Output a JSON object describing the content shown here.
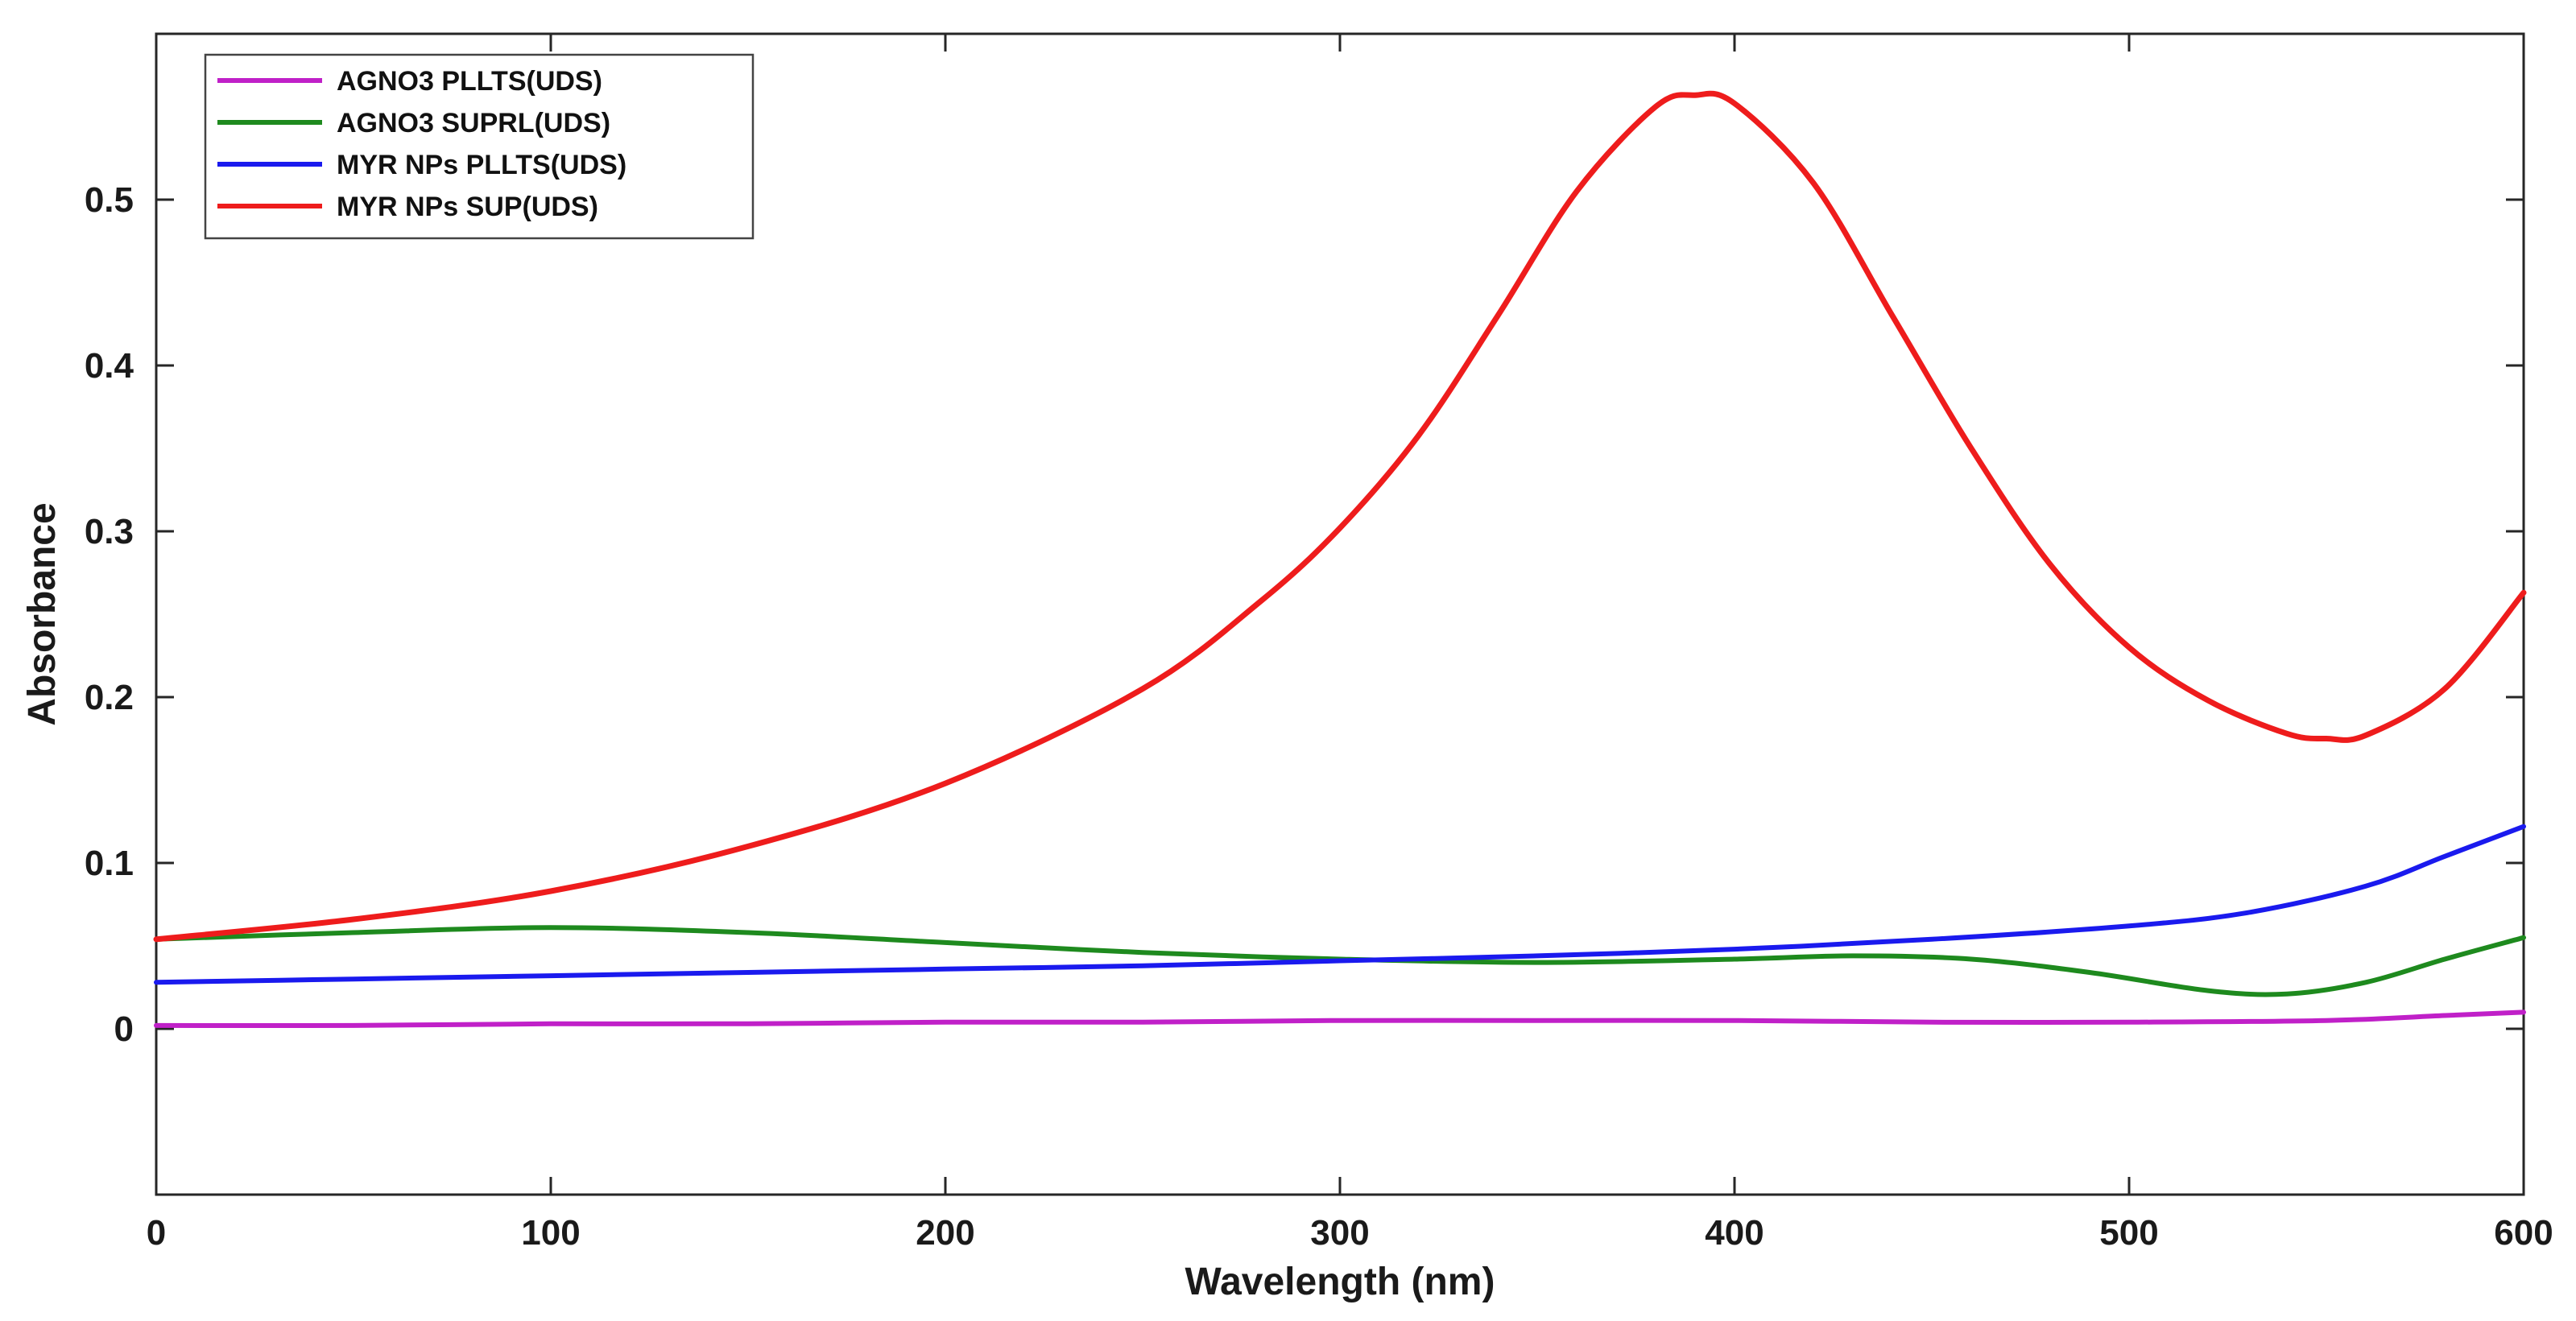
{
  "chart_data": {
    "type": "line",
    "title": "",
    "xlabel": "Wavelength (nm)",
    "ylabel": "Absorbance",
    "xlim": [
      0,
      600
    ],
    "ylim": [
      -0.1,
      0.6
    ],
    "xticks": [
      0,
      100,
      200,
      300,
      400,
      500,
      600
    ],
    "yticks": [
      0,
      0.1,
      0.2,
      0.3,
      0.4,
      0.5
    ],
    "grid": false,
    "legend_position": "top-left",
    "series": [
      {
        "name": "AGNO3 PLLTS(UDS)",
        "color": "#c020c8",
        "x": [
          0,
          50,
          100,
          150,
          200,
          250,
          300,
          350,
          400,
          450,
          500,
          550,
          580,
          600
        ],
        "y": [
          0.002,
          0.002,
          0.003,
          0.003,
          0.004,
          0.004,
          0.005,
          0.005,
          0.005,
          0.004,
          0.004,
          0.005,
          0.008,
          0.01
        ]
      },
      {
        "name": "AGNO3 SUPRL(UDS)",
        "color": "#1e8a1e",
        "x": [
          0,
          50,
          100,
          150,
          200,
          250,
          300,
          350,
          400,
          430,
          460,
          490,
          520,
          540,
          560,
          580,
          600
        ],
        "y": [
          0.054,
          0.058,
          0.061,
          0.058,
          0.052,
          0.046,
          0.042,
          0.04,
          0.042,
          0.044,
          0.042,
          0.034,
          0.023,
          0.021,
          0.028,
          0.042,
          0.055
        ]
      },
      {
        "name": "MYR NPs PLLTS(UDS)",
        "color": "#1a1aee",
        "x": [
          0,
          50,
          100,
          150,
          200,
          250,
          300,
          350,
          400,
          450,
          500,
          530,
          560,
          580,
          600
        ],
        "y": [
          0.028,
          0.03,
          0.032,
          0.034,
          0.036,
          0.038,
          0.041,
          0.044,
          0.048,
          0.054,
          0.062,
          0.07,
          0.086,
          0.104,
          0.122
        ]
      },
      {
        "name": "MYR NPs SUP(UDS)",
        "color": "#ee1c1c",
        "x": [
          0,
          50,
          100,
          150,
          200,
          250,
          280,
          300,
          320,
          340,
          360,
          380,
          390,
          400,
          420,
          440,
          460,
          480,
          500,
          520,
          540,
          550,
          560,
          580,
          600
        ],
        "y": [
          0.054,
          0.066,
          0.083,
          0.11,
          0.148,
          0.205,
          0.258,
          0.302,
          0.358,
          0.43,
          0.505,
          0.556,
          0.563,
          0.558,
          0.51,
          0.43,
          0.35,
          0.28,
          0.23,
          0.198,
          0.178,
          0.175,
          0.177,
          0.205,
          0.263
        ]
      }
    ]
  }
}
